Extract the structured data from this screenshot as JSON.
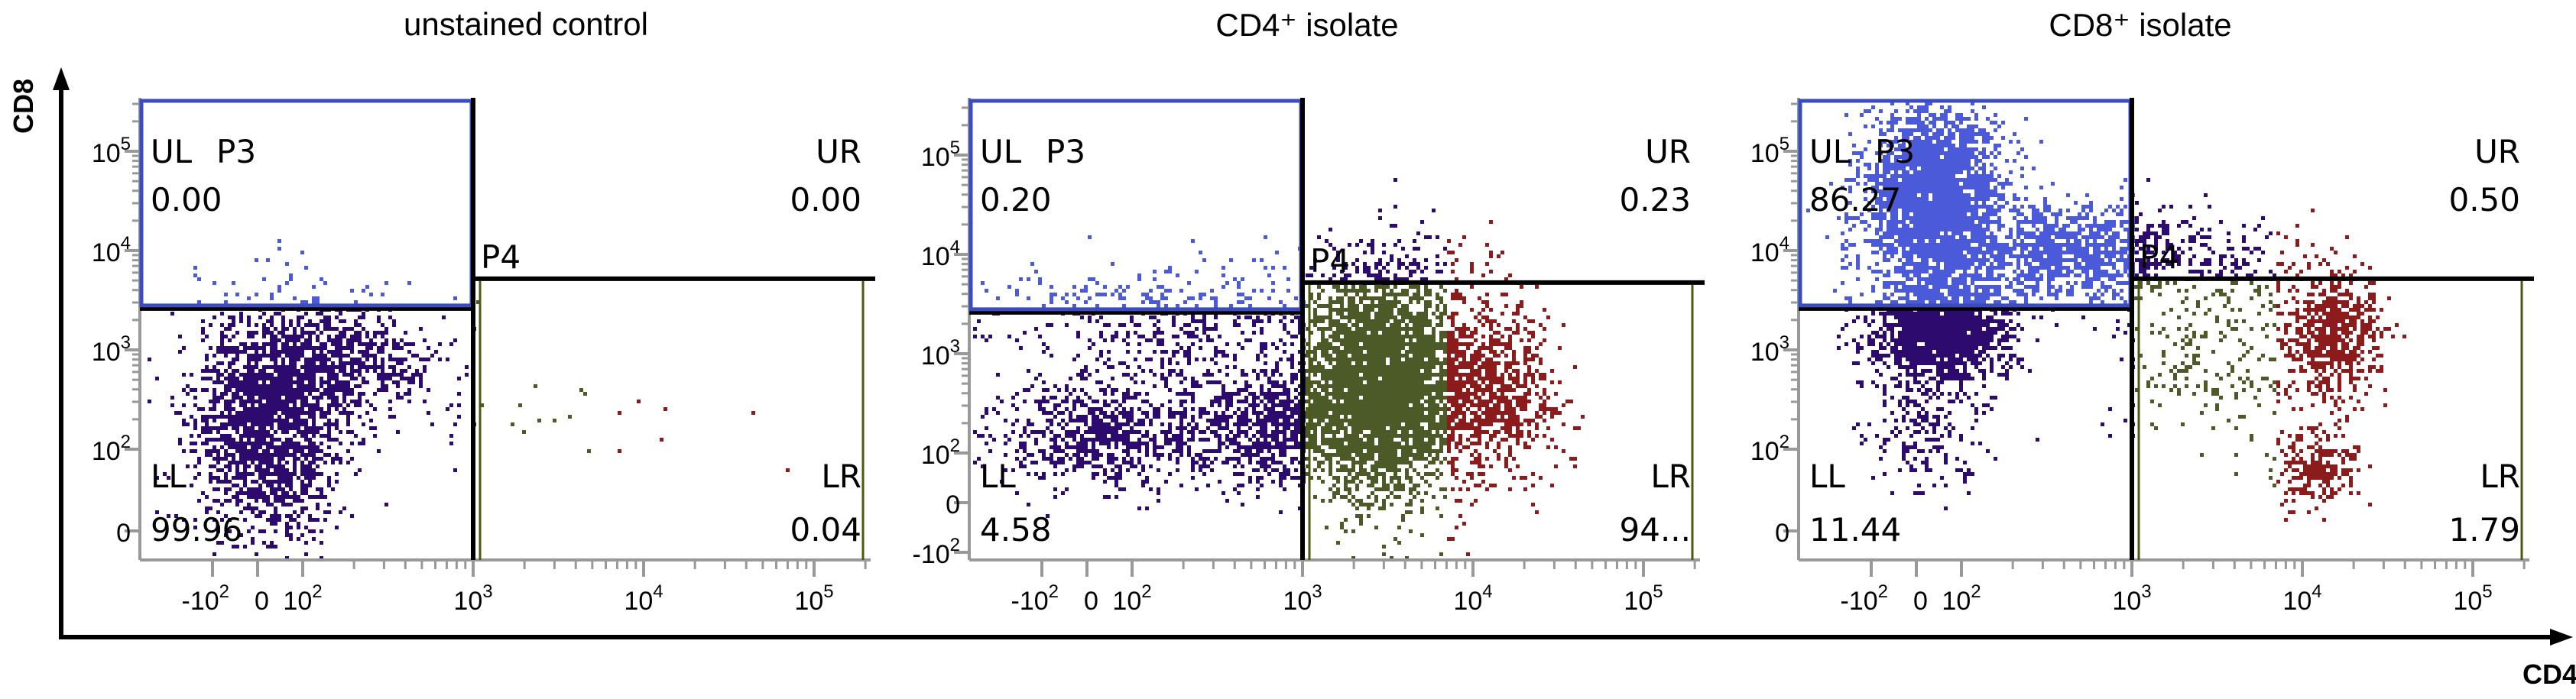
{
  "chart_data": {
    "type": "scatter",
    "xlabel": "CD4",
    "ylabel": "CD8",
    "scale": "biexponential (log)",
    "xlim": [
      -200,
      210000
    ],
    "ylim": [
      -100,
      262144
    ],
    "colors": {
      "ll": "#2d0a6e",
      "p3": "#4a5ad8",
      "p4": "#4b5a26",
      "hi": "#8c1c1c",
      "gate_p3": "#3b4cc0",
      "gate_p4": "#4b5a10"
    },
    "x_ticks": [
      {
        "value": -100,
        "base": "-10",
        "exp": "2"
      },
      {
        "value": 0,
        "base": "0",
        "exp": ""
      },
      {
        "value": 100,
        "base": "10",
        "exp": "2"
      },
      {
        "value": 1000,
        "base": "10",
        "exp": "3"
      },
      {
        "value": 10000,
        "base": "10",
        "exp": "4"
      },
      {
        "value": 100000,
        "base": "10",
        "exp": "5"
      }
    ],
    "gates": {
      "quadrant_x": 1000,
      "p3_bottom_y": 2800,
      "p4_top_y": 5200,
      "p4_right_x": 200000
    },
    "panels": [
      {
        "title": "unstained control",
        "y_ticks": [
          {
            "value": 0,
            "base": "0",
            "exp": ""
          },
          {
            "value": 100,
            "base": "10",
            "exp": "2"
          },
          {
            "value": 1000,
            "base": "10",
            "exp": "3"
          },
          {
            "value": 10000,
            "base": "10",
            "exp": "4"
          },
          {
            "value": 100000,
            "base": "10",
            "exp": "5"
          }
        ],
        "gate_labels": {
          "p3": "P3",
          "p4": "P4"
        },
        "quadrants": {
          "ul": {
            "label": "UL",
            "value": "0.00"
          },
          "ur": {
            "label": "UR",
            "value": "0.00"
          },
          "ll": {
            "label": "LL",
            "value": "99.96"
          },
          "lr": {
            "label": "LR",
            "value": "0.04"
          }
        },
        "populations": [
          {
            "x": 20,
            "y": 180,
            "sx": 0.22,
            "sy": 0.55,
            "n": 1800
          },
          {
            "x": 150,
            "y": 800,
            "sx": 0.28,
            "sy": 0.3,
            "n": 700
          },
          {
            "x": 4000,
            "y": 250,
            "sx": 0.6,
            "sy": 0.25,
            "n": 28
          }
        ]
      },
      {
        "title": "CD4⁺ isolate",
        "y_ticks": [
          {
            "value": -100,
            "base": "-10",
            "exp": "2"
          },
          {
            "value": 0,
            "base": "0",
            "exp": ""
          },
          {
            "value": 100,
            "base": "10",
            "exp": "2"
          },
          {
            "value": 1000,
            "base": "10",
            "exp": "3"
          },
          {
            "value": 10000,
            "base": "10",
            "exp": "4"
          },
          {
            "value": 100000,
            "base": "10",
            "exp": "5"
          }
        ],
        "gate_labels": {
          "p3": "P3",
          "p4": "P4"
        },
        "quadrants": {
          "ul": {
            "label": "UL",
            "value": "0.20"
          },
          "ur": {
            "label": "UR",
            "value": "0.23"
          },
          "ll": {
            "label": "LL",
            "value": "4.58"
          },
          "lr": {
            "label": "LR",
            "value": "94..."
          }
        },
        "populations": [
          {
            "x": 40,
            "y": 150,
            "sx": 0.35,
            "sy": 0.25,
            "n": 700
          },
          {
            "x": 600,
            "y": 180,
            "sx": 0.25,
            "sy": 0.3,
            "n": 700
          },
          {
            "x": 200,
            "y": 1500,
            "sx": 0.5,
            "sy": 0.35,
            "n": 450
          },
          {
            "x": 2800,
            "y": 500,
            "sx": 0.22,
            "sy": 0.55,
            "n": 3500
          },
          {
            "x": 12000,
            "y": 450,
            "sx": 0.2,
            "sy": 0.45,
            "n": 900
          },
          {
            "x": 100,
            "y": 4000,
            "sx": 0.5,
            "sy": 0.15,
            "n": 70
          },
          {
            "x": 4000,
            "y": 8000,
            "sx": 0.3,
            "sy": 0.2,
            "n": 90
          }
        ]
      },
      {
        "title": "CD8⁺ isolate",
        "y_ticks": [
          {
            "value": 0,
            "base": "0",
            "exp": ""
          },
          {
            "value": 100,
            "base": "10",
            "exp": "2"
          },
          {
            "value": 1000,
            "base": "10",
            "exp": "3"
          },
          {
            "value": 10000,
            "base": "10",
            "exp": "4"
          },
          {
            "value": 100000,
            "base": "10",
            "exp": "5"
          }
        ],
        "gate_labels": {
          "p3": "P3",
          "p4": "P4"
        },
        "quadrants": {
          "ul": {
            "label": "UL",
            "value": "86.27"
          },
          "ur": {
            "label": "UR",
            "value": "0.50"
          },
          "ll": {
            "label": "LL",
            "value": "11.44"
          },
          "lr": {
            "label": "LR",
            "value": "1.79"
          }
        },
        "populations": [
          {
            "x": 30,
            "y": 30000,
            "sx": 0.2,
            "sy": 0.5,
            "n": 2800
          },
          {
            "x": 400,
            "y": 10000,
            "sx": 0.35,
            "sy": 0.25,
            "n": 1100
          },
          {
            "x": 50,
            "y": 1500,
            "sx": 0.2,
            "sy": 0.22,
            "n": 1400
          },
          {
            "x": 20,
            "y": 200,
            "sx": 0.2,
            "sy": 0.35,
            "n": 220
          },
          {
            "x": 3000,
            "y": 1000,
            "sx": 0.3,
            "sy": 0.5,
            "n": 260
          },
          {
            "x": 15000,
            "y": 1500,
            "sx": 0.14,
            "sy": 0.3,
            "n": 650
          },
          {
            "x": 12000,
            "y": 80,
            "sx": 0.12,
            "sy": 0.2,
            "n": 220
          },
          {
            "x": 4000,
            "y": 8000,
            "sx": 0.3,
            "sy": 0.2,
            "n": 110
          }
        ]
      }
    ]
  }
}
